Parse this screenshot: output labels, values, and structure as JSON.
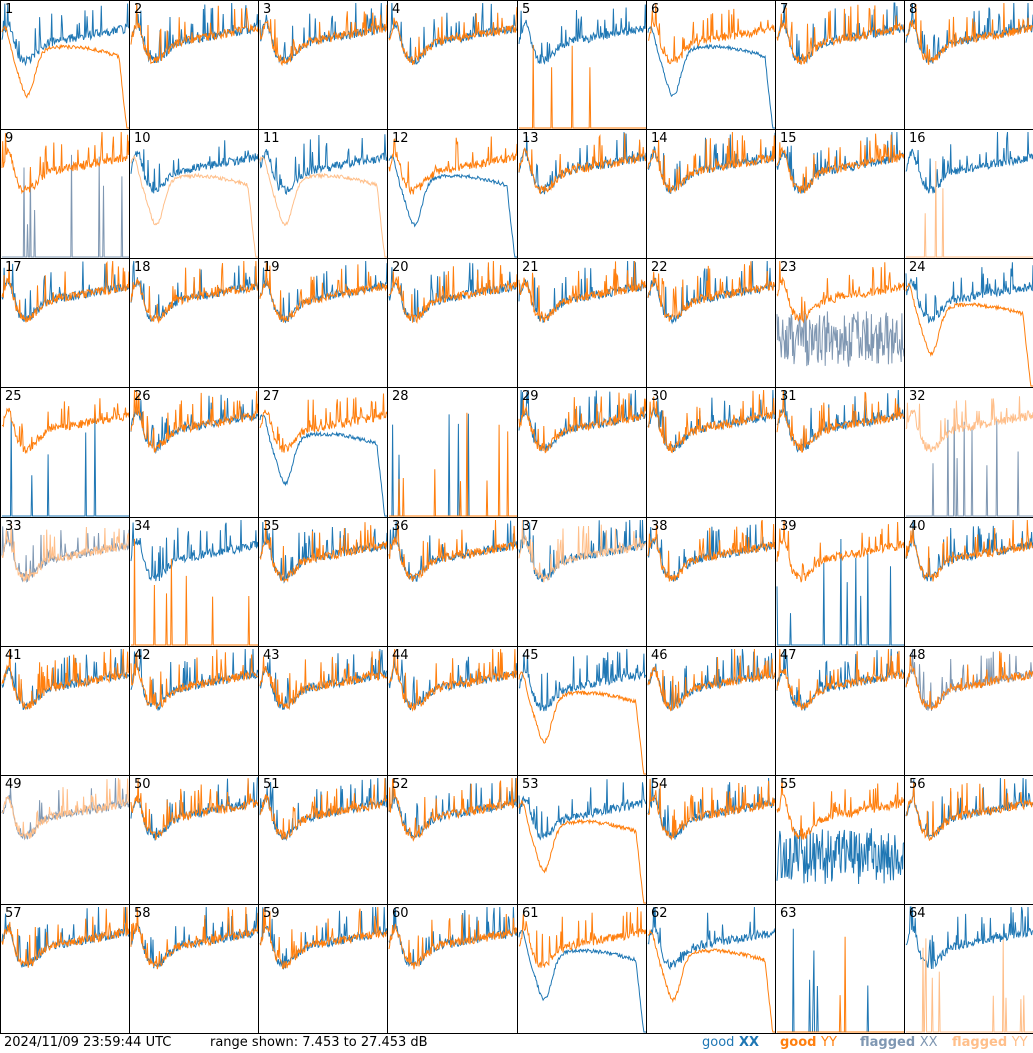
{
  "chart_data": {
    "type": "line",
    "grid": "8x8 small-multiples",
    "panel_labels": [
      "1",
      "2",
      "3",
      "4",
      "5",
      "6",
      "7",
      "8",
      "9",
      "10",
      "11",
      "12",
      "13",
      "14",
      "15",
      "16",
      "17",
      "18",
      "19",
      "20",
      "21",
      "22",
      "23",
      "24",
      "25",
      "26",
      "27",
      "28",
      "29",
      "30",
      "31",
      "32",
      "33",
      "34",
      "35",
      "36",
      "37",
      "38",
      "39",
      "40",
      "41",
      "42",
      "43",
      "44",
      "45",
      "46",
      "47",
      "48",
      "49",
      "50",
      "51",
      "52",
      "53",
      "54",
      "55",
      "56",
      "57",
      "58",
      "59",
      "60",
      "61",
      "62",
      "63",
      "64"
    ],
    "ylim": [
      7.453,
      27.453
    ],
    "y_units": "dB",
    "series_styles": {
      "good_xx": "#1f77b4",
      "good_yy": "#ff7f0e",
      "flagged_xx": "#7f97b2",
      "flagged_yy": "#ffbf8a"
    },
    "panels": [
      {
        "xx": "good_xx",
        "yy": "good_yy",
        "yy_shape": "dip"
      },
      {
        "xx": "good_xx",
        "yy": "good_yy"
      },
      {
        "xx": "good_xx",
        "yy": "good_yy"
      },
      {
        "xx": "good_xx",
        "yy": "good_yy"
      },
      {
        "xx": "good_xx",
        "yy": "good_yy",
        "yy_shape": "spikes"
      },
      {
        "xx": "good_xx",
        "yy": "good_yy",
        "xx_shape": "dip"
      },
      {
        "xx": "good_xx",
        "yy": "good_yy"
      },
      {
        "xx": "good_xx",
        "yy": "good_yy"
      },
      {
        "xx": "flagged_xx",
        "yy": "good_yy",
        "xx_shape": "spikes"
      },
      {
        "xx": "good_xx",
        "yy": "flagged_yy",
        "yy_shape": "dip"
      },
      {
        "xx": "good_xx",
        "yy": "flagged_yy",
        "yy_shape": "dip"
      },
      {
        "xx": "good_xx",
        "yy": "good_yy",
        "xx_shape": "dip"
      },
      {
        "xx": "good_xx",
        "yy": "good_yy"
      },
      {
        "xx": "good_xx",
        "yy": "good_yy"
      },
      {
        "xx": "good_xx",
        "yy": "good_yy"
      },
      {
        "xx": "good_xx",
        "yy": "flagged_yy",
        "yy_shape": "spikes"
      },
      {
        "xx": "good_xx",
        "yy": "good_yy"
      },
      {
        "xx": "good_xx",
        "yy": "good_yy"
      },
      {
        "xx": "good_xx",
        "yy": "good_yy"
      },
      {
        "xx": "good_xx",
        "yy": "good_yy"
      },
      {
        "xx": "good_xx",
        "yy": "good_yy"
      },
      {
        "xx": "good_xx",
        "yy": "good_yy"
      },
      {
        "xx": "flagged_xx",
        "yy": "good_yy",
        "xx_shape": "noisy_low"
      },
      {
        "xx": "good_xx",
        "yy": "good_yy",
        "yy_shape": "dip"
      },
      {
        "xx": "good_xx",
        "yy": "good_yy",
        "xx_shape": "spikes"
      },
      {
        "xx": "good_xx",
        "yy": "good_yy"
      },
      {
        "xx": "good_xx",
        "yy": "good_yy",
        "xx_shape": "dip"
      },
      {
        "xx": "good_xx",
        "yy": "good_yy",
        "xx_shape": "spikes",
        "yy_shape": "spikes"
      },
      {
        "xx": "good_xx",
        "yy": "good_yy"
      },
      {
        "xx": "good_xx",
        "yy": "good_yy"
      },
      {
        "xx": "good_xx",
        "yy": "good_yy"
      },
      {
        "xx": "flagged_xx",
        "yy": "flagged_yy",
        "xx_shape": "spikes"
      },
      {
        "xx": "flagged_xx",
        "yy": "flagged_yy"
      },
      {
        "xx": "good_xx",
        "yy": "good_yy",
        "yy_shape": "spikes"
      },
      {
        "xx": "good_xx",
        "yy": "good_yy"
      },
      {
        "xx": "good_xx",
        "yy": "good_yy"
      },
      {
        "xx": "good_xx",
        "yy": "flagged_yy"
      },
      {
        "xx": "good_xx",
        "yy": "good_yy"
      },
      {
        "xx": "good_xx",
        "yy": "good_yy",
        "xx_shape": "spikes"
      },
      {
        "xx": "good_xx",
        "yy": "good_yy"
      },
      {
        "xx": "good_xx",
        "yy": "good_yy"
      },
      {
        "xx": "good_xx",
        "yy": "good_yy"
      },
      {
        "xx": "good_xx",
        "yy": "good_yy"
      },
      {
        "xx": "good_xx",
        "yy": "good_yy"
      },
      {
        "xx": "good_xx",
        "yy": "good_yy",
        "yy_shape": "dip"
      },
      {
        "xx": "good_xx",
        "yy": "good_yy"
      },
      {
        "xx": "good_xx",
        "yy": "good_yy"
      },
      {
        "xx": "flagged_xx",
        "yy": "good_yy"
      },
      {
        "xx": "flagged_xx",
        "yy": "flagged_yy"
      },
      {
        "xx": "good_xx",
        "yy": "good_yy"
      },
      {
        "xx": "good_xx",
        "yy": "good_yy"
      },
      {
        "xx": "good_xx",
        "yy": "good_yy"
      },
      {
        "xx": "good_xx",
        "yy": "good_yy",
        "yy_shape": "dip"
      },
      {
        "xx": "good_xx",
        "yy": "good_yy"
      },
      {
        "xx": "good_xx",
        "yy": "good_yy",
        "xx_shape": "noisy_low"
      },
      {
        "xx": "good_xx",
        "yy": "good_yy"
      },
      {
        "xx": "good_xx",
        "yy": "good_yy"
      },
      {
        "xx": "good_xx",
        "yy": "good_yy"
      },
      {
        "xx": "good_xx",
        "yy": "good_yy"
      },
      {
        "xx": "good_xx",
        "yy": "good_yy"
      },
      {
        "xx": "good_xx",
        "yy": "good_yy",
        "xx_shape": "dip"
      },
      {
        "xx": "good_xx",
        "yy": "good_yy",
        "yy_shape": "dip"
      },
      {
        "xx": "good_xx",
        "yy": "good_yy",
        "xx_shape": "spikes",
        "yy_shape": "spikes"
      },
      {
        "xx": "good_xx",
        "yy": "flagged_yy",
        "yy_shape": "spikes"
      }
    ]
  },
  "footer": {
    "timestamp": "2024/11/09 23:59:44 UTC",
    "range_text": "range shown: 7.453 to 27.453 dB",
    "legend": [
      {
        "word": "good",
        "pol": "XX",
        "color": "#1f77b4"
      },
      {
        "word": "good",
        "pol": "YY",
        "color": "#ff7f0e"
      },
      {
        "word": "flagged",
        "pol": "XX",
        "color": "#7f97b2"
      },
      {
        "word": "flagged",
        "pol": "YY",
        "color": "#ffbf8a"
      }
    ]
  }
}
